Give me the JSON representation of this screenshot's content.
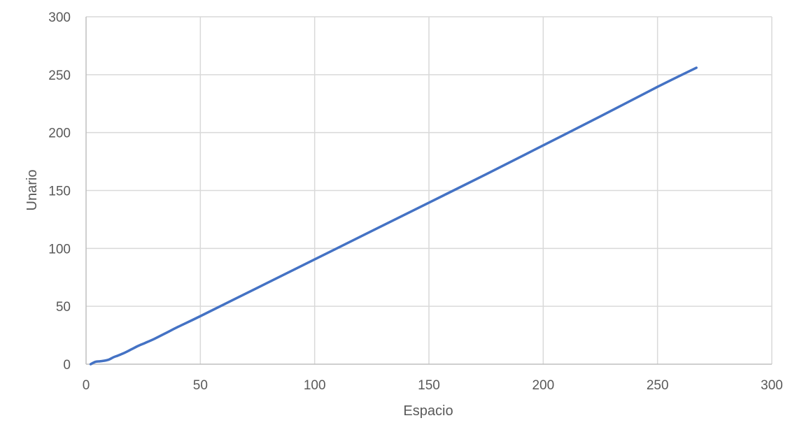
{
  "chart_data": {
    "type": "scatter",
    "title": "",
    "xlabel": "Espacio",
    "ylabel": "Unario",
    "xlim": [
      0,
      300
    ],
    "ylim": [
      0,
      300
    ],
    "xticks": [
      0,
      50,
      100,
      150,
      200,
      250,
      300
    ],
    "yticks": [
      0,
      50,
      100,
      150,
      200,
      250,
      300
    ],
    "x_tick_labels": [
      "0",
      "50",
      "100",
      "150",
      "200",
      "250",
      "300"
    ],
    "y_tick_labels": [
      "0",
      "50",
      "100",
      "150",
      "200",
      "250",
      "300"
    ],
    "grid": true,
    "legend": "none",
    "series": [
      {
        "color": "#4472c4",
        "line": "smooth",
        "x": [
          2,
          4,
          6,
          8,
          10,
          12,
          14,
          17,
          20,
          23,
          26,
          30,
          35,
          40,
          50,
          75,
          100,
          125,
          150,
          175,
          200,
          225,
          250,
          267
        ],
        "y": [
          0,
          2,
          2.5,
          3,
          4,
          6,
          7.5,
          10,
          13,
          16,
          18.5,
          22,
          27,
          32,
          41.5,
          66,
          90.5,
          115,
          139.5,
          164,
          189,
          214,
          239.5,
          256
        ]
      }
    ]
  }
}
